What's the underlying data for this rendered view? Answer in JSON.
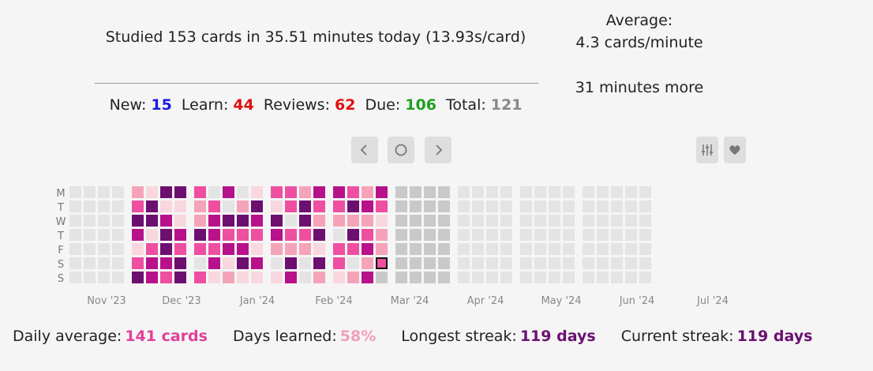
{
  "summary": {
    "studied_text": "Studied 153 cards in 35.51 minutes today (13.93s/card)",
    "average_label": "Average:",
    "average_value": "4.3 cards/minute",
    "more_text": "31 minutes more"
  },
  "counts": {
    "new_label": "New:",
    "new_value": "15",
    "learn_label": "Learn:",
    "learn_value": "44",
    "reviews_label": "Reviews:",
    "reviews_value": "62",
    "due_label": "Due:",
    "due_value": "106",
    "total_label": "Total:",
    "total_value": "121"
  },
  "colors": {
    "new": "#1a1ae0",
    "learn": "#e01010",
    "reviews": "#e01010",
    "due": "#20a020",
    "total": "#888888",
    "daily_average": "#e0409a",
    "days_learned": "#f0a0b8",
    "streak": "#6a1070",
    "level_0": "#e4e4e4",
    "level_1": "#f9d7df",
    "level_2": "#f5a3b8",
    "level_3": "#ee4fa0",
    "level_4": "#b8128a",
    "level_5": "#6c0f6f",
    "future": "#c9c9c9",
    "today_border": "#111111"
  },
  "icons": {
    "prev": "chevron-left-icon",
    "today": "circle-icon",
    "next": "chevron-right-icon",
    "settings": "sliders-icon",
    "heart": "heart-icon"
  },
  "heatmap": {
    "day_labels": [
      "M",
      "T",
      "W",
      "T",
      "F",
      "S",
      "S"
    ],
    "months": [
      "Nov '23",
      "Dec '23",
      "Jan '24",
      "Feb '24",
      "Mar '24",
      "Apr '24",
      "May '24",
      "Jun '24",
      "Jul '24"
    ]
  },
  "stats": {
    "daily_average_label": "Daily average:",
    "daily_average_value": "141 cards",
    "days_learned_label": "Days learned:",
    "days_learned_value": "58%",
    "longest_streak_label": "Longest streak:",
    "longest_streak_value": "119 days",
    "current_streak_label": "Current streak:",
    "current_streak_value": "119 days"
  }
}
